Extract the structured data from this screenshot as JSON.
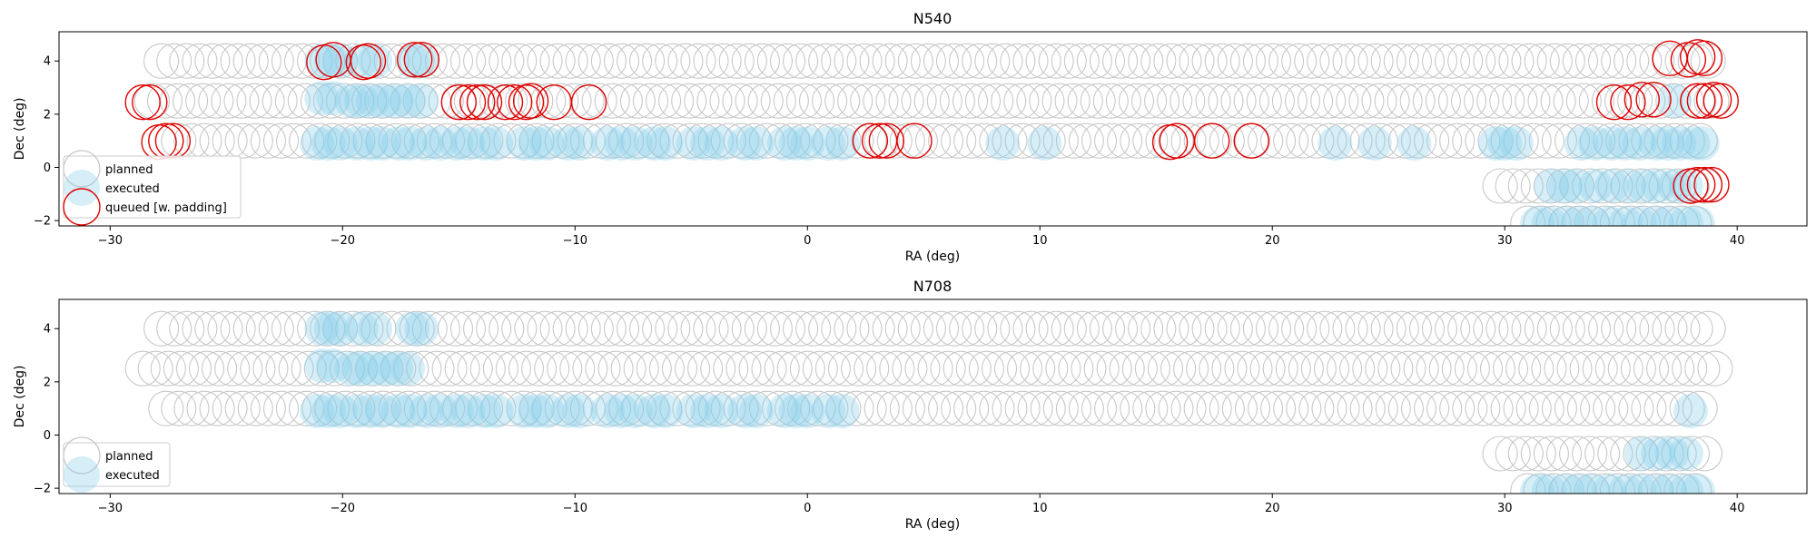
{
  "colors": {
    "planned_edge": "#c8c8c8",
    "executed_fill": "#87ceeb",
    "queued_edge": "#e00000",
    "legend_border": "#cccccc",
    "axis": "#000000"
  },
  "chart_data": [
    {
      "type": "scatter",
      "title": "N540",
      "xlabel": "RA (deg)",
      "ylabel": "Dec (deg)",
      "xlim": [
        -32.2,
        43.0
      ],
      "ylim": [
        -2.2,
        5.1
      ],
      "xticks": [
        -30,
        -20,
        -10,
        0,
        10,
        20,
        30,
        40
      ],
      "xtick_labels": [
        "−30",
        "−20",
        "−10",
        "0",
        "10",
        "20",
        "30",
        "40"
      ],
      "yticks": [
        -2,
        0,
        2,
        4
      ],
      "ytick_labels": [
        "−2",
        "0",
        "2",
        "4"
      ],
      "grid": false,
      "legend": {
        "location": "lower-left",
        "entries": [
          {
            "label": "planned",
            "series": "planned"
          },
          {
            "label": "executed",
            "series": "executed"
          },
          {
            "label": "queued [w. padding]",
            "series": "queued"
          }
        ]
      },
      "series": [
        {
          "name": "planned",
          "style": "planned",
          "rows": [
            {
              "dec": 4.0,
              "ra_start": -27.8,
              "ra_end": 38.8,
              "step": 0.55
            },
            {
              "dec": 2.5,
              "ra_start": -28.2,
              "ra_end": 39.2,
              "step": 0.55
            },
            {
              "dec": 1.0,
              "ra_start": -27.6,
              "ra_end": 38.6,
              "step": 0.55
            },
            {
              "dec": -0.7,
              "ra_start": 29.8,
              "ra_end": 38.6,
              "step": 0.55
            },
            {
              "dec": -2.1,
              "ra_start": 31.0,
              "ra_end": 38.4,
              "step": 0.55
            }
          ]
        },
        {
          "name": "executed",
          "style": "executed",
          "points": [
            [
              -20.9,
              4.0
            ],
            [
              -20.5,
              4.0
            ],
            [
              -20.1,
              4.0
            ],
            [
              -19.2,
              4.0
            ],
            [
              -18.6,
              4.0
            ],
            [
              -17.0,
              4.0
            ],
            [
              -16.6,
              4.0
            ],
            [
              -20.9,
              2.6
            ],
            [
              -20.4,
              2.6
            ],
            [
              -19.6,
              2.5
            ],
            [
              -19.2,
              2.5
            ],
            [
              -18.7,
              2.5
            ],
            [
              -18.2,
              2.5
            ],
            [
              -17.7,
              2.5
            ],
            [
              -17.2,
              2.5
            ],
            [
              -16.6,
              2.5
            ],
            [
              -21.1,
              0.9
            ],
            [
              -20.6,
              0.9
            ],
            [
              -20.1,
              0.9
            ],
            [
              -19.4,
              0.9
            ],
            [
              -18.8,
              0.9
            ],
            [
              -18.3,
              0.9
            ],
            [
              -17.6,
              0.9
            ],
            [
              -17.1,
              0.9
            ],
            [
              -16.4,
              0.9
            ],
            [
              -15.8,
              0.9
            ],
            [
              -15.1,
              0.9
            ],
            [
              -14.6,
              0.9
            ],
            [
              -13.9,
              0.9
            ],
            [
              -13.4,
              0.9
            ],
            [
              -12.2,
              0.9
            ],
            [
              -11.7,
              0.9
            ],
            [
              -11.2,
              0.9
            ],
            [
              -10.3,
              0.9
            ],
            [
              -9.8,
              0.9
            ],
            [
              -8.6,
              0.9
            ],
            [
              -8.0,
              0.9
            ],
            [
              -7.4,
              0.9
            ],
            [
              -6.6,
              0.9
            ],
            [
              -6.1,
              0.9
            ],
            [
              -4.9,
              0.9
            ],
            [
              -4.3,
              0.9
            ],
            [
              -3.7,
              0.9
            ],
            [
              -2.7,
              0.9
            ],
            [
              -2.2,
              0.9
            ],
            [
              -1.0,
              0.9
            ],
            [
              -0.5,
              0.9
            ],
            [
              0.0,
              0.9
            ],
            [
              0.9,
              0.9
            ],
            [
              1.5,
              0.9
            ],
            [
              8.4,
              0.9
            ],
            [
              10.2,
              0.9
            ],
            [
              22.7,
              0.9
            ],
            [
              24.4,
              0.9
            ],
            [
              26.1,
              0.9
            ],
            [
              29.6,
              0.9
            ],
            [
              30.0,
              0.9
            ],
            [
              30.5,
              0.9
            ],
            [
              33.3,
              0.9
            ],
            [
              33.9,
              0.9
            ],
            [
              34.6,
              0.9
            ],
            [
              35.2,
              0.9
            ],
            [
              35.8,
              0.9
            ],
            [
              36.5,
              0.9
            ],
            [
              37.0,
              0.9
            ],
            [
              37.5,
              0.9
            ],
            [
              38.1,
              0.9
            ],
            [
              38.5,
              0.9
            ],
            [
              37.3,
              2.5
            ],
            [
              32.0,
              -0.7
            ],
            [
              32.6,
              -0.7
            ],
            [
              33.1,
              -0.7
            ],
            [
              33.9,
              -0.7
            ],
            [
              34.6,
              -0.7
            ],
            [
              35.3,
              -0.7
            ],
            [
              36.0,
              -0.7
            ],
            [
              36.6,
              -0.7
            ],
            [
              37.3,
              -0.7
            ],
            [
              37.8,
              -0.7
            ],
            [
              31.4,
              -2.1
            ],
            [
              31.9,
              -2.1
            ],
            [
              32.6,
              -2.1
            ],
            [
              33.2,
              -2.1
            ],
            [
              33.8,
              -2.1
            ],
            [
              34.5,
              -2.1
            ],
            [
              35.2,
              -2.1
            ],
            [
              35.8,
              -2.1
            ],
            [
              36.5,
              -2.1
            ],
            [
              37.1,
              -2.1
            ],
            [
              37.8,
              -2.1
            ],
            [
              38.3,
              -2.1
            ]
          ]
        },
        {
          "name": "queued [w. padding]",
          "style": "queued",
          "points": [
            [
              -20.8,
              3.95
            ],
            [
              -20.4,
              4.05
            ],
            [
              -19.1,
              3.95
            ],
            [
              -18.9,
              4.0
            ],
            [
              -16.9,
              4.05
            ],
            [
              -16.6,
              4.05
            ],
            [
              -28.6,
              2.45
            ],
            [
              -28.3,
              2.45
            ],
            [
              -15.0,
              2.45
            ],
            [
              -14.6,
              2.45
            ],
            [
              -14.2,
              2.45
            ],
            [
              -13.9,
              2.45
            ],
            [
              -13.0,
              2.45
            ],
            [
              -12.6,
              2.45
            ],
            [
              -12.1,
              2.45
            ],
            [
              -11.9,
              2.5
            ],
            [
              -10.9,
              2.45
            ],
            [
              -9.4,
              2.45
            ],
            [
              -27.9,
              0.95
            ],
            [
              -27.6,
              1.0
            ],
            [
              -27.3,
              1.0
            ],
            [
              2.7,
              1.0
            ],
            [
              3.1,
              1.0
            ],
            [
              3.4,
              1.0
            ],
            [
              4.6,
              1.0
            ],
            [
              15.6,
              0.95
            ],
            [
              15.9,
              1.0
            ],
            [
              17.4,
              1.0
            ],
            [
              19.1,
              1.0
            ],
            [
              37.1,
              4.1
            ],
            [
              37.9,
              4.05
            ],
            [
              38.3,
              4.15
            ],
            [
              38.6,
              4.1
            ],
            [
              34.7,
              2.45
            ],
            [
              35.3,
              2.45
            ],
            [
              35.9,
              2.55
            ],
            [
              36.4,
              2.55
            ],
            [
              38.3,
              2.5
            ],
            [
              38.6,
              2.5
            ],
            [
              39.0,
              2.55
            ],
            [
              39.3,
              2.5
            ],
            [
              38.0,
              -0.7
            ],
            [
              38.3,
              -0.65
            ],
            [
              38.6,
              -0.65
            ],
            [
              38.9,
              -0.65
            ]
          ]
        }
      ]
    },
    {
      "type": "scatter",
      "title": "N708",
      "xlabel": "RA (deg)",
      "ylabel": "Dec (deg)",
      "xlim": [
        -32.2,
        43.0
      ],
      "ylim": [
        -2.2,
        5.1
      ],
      "xticks": [
        -30,
        -20,
        -10,
        0,
        10,
        20,
        30,
        40
      ],
      "xtick_labels": [
        "−30",
        "−20",
        "−10",
        "0",
        "10",
        "20",
        "30",
        "40"
      ],
      "yticks": [
        -2,
        0,
        2,
        4
      ],
      "ytick_labels": [
        "−2",
        "0",
        "2",
        "4"
      ],
      "grid": false,
      "legend": {
        "location": "lower-left",
        "entries": [
          {
            "label": "planned",
            "series": "planned"
          },
          {
            "label": "executed",
            "series": "executed"
          }
        ]
      },
      "series": [
        {
          "name": "planned",
          "style": "planned",
          "rows": [
            {
              "dec": 4.0,
              "ra_start": -27.8,
              "ra_end": 38.8,
              "step": 0.55
            },
            {
              "dec": 2.5,
              "ra_start": -28.6,
              "ra_end": 39.2,
              "step": 0.55
            },
            {
              "dec": 1.0,
              "ra_start": -27.6,
              "ra_end": 38.6,
              "step": 0.55
            },
            {
              "dec": -0.7,
              "ra_start": 29.8,
              "ra_end": 38.6,
              "step": 0.55
            },
            {
              "dec": -2.1,
              "ra_start": 31.0,
              "ra_end": 38.4,
              "step": 0.55
            }
          ]
        },
        {
          "name": "executed",
          "style": "executed",
          "points": [
            [
              -20.9,
              4.0
            ],
            [
              -20.5,
              4.0
            ],
            [
              -20.1,
              4.0
            ],
            [
              -19.2,
              4.0
            ],
            [
              -18.6,
              4.0
            ],
            [
              -17.0,
              4.0
            ],
            [
              -16.6,
              4.0
            ],
            [
              -20.9,
              2.6
            ],
            [
              -20.4,
              2.6
            ],
            [
              -19.6,
              2.5
            ],
            [
              -19.2,
              2.5
            ],
            [
              -18.7,
              2.5
            ],
            [
              -18.2,
              2.5
            ],
            [
              -17.7,
              2.5
            ],
            [
              -17.2,
              2.5
            ],
            [
              -21.1,
              0.9
            ],
            [
              -20.6,
              0.9
            ],
            [
              -20.1,
              0.9
            ],
            [
              -19.4,
              0.9
            ],
            [
              -18.8,
              0.9
            ],
            [
              -18.3,
              0.9
            ],
            [
              -17.6,
              0.9
            ],
            [
              -17.1,
              0.9
            ],
            [
              -16.4,
              0.9
            ],
            [
              -15.8,
              0.9
            ],
            [
              -15.1,
              0.9
            ],
            [
              -14.6,
              0.9
            ],
            [
              -13.9,
              0.9
            ],
            [
              -13.4,
              0.9
            ],
            [
              -12.2,
              0.9
            ],
            [
              -11.7,
              0.9
            ],
            [
              -11.2,
              0.9
            ],
            [
              -10.3,
              0.9
            ],
            [
              -9.8,
              0.9
            ],
            [
              -8.6,
              0.9
            ],
            [
              -8.0,
              0.9
            ],
            [
              -7.4,
              0.9
            ],
            [
              -6.6,
              0.9
            ],
            [
              -6.1,
              0.9
            ],
            [
              -4.9,
              0.9
            ],
            [
              -4.3,
              0.9
            ],
            [
              -3.7,
              0.9
            ],
            [
              -2.7,
              0.9
            ],
            [
              -2.2,
              0.9
            ],
            [
              -1.0,
              0.9
            ],
            [
              -0.5,
              0.9
            ],
            [
              0.0,
              0.9
            ],
            [
              0.9,
              0.9
            ],
            [
              1.5,
              0.9
            ],
            [
              38.0,
              0.9
            ],
            [
              35.9,
              -0.7
            ],
            [
              36.6,
              -0.7
            ],
            [
              37.2,
              -0.7
            ],
            [
              37.8,
              -0.7
            ],
            [
              31.4,
              -2.1
            ],
            [
              31.9,
              -2.1
            ],
            [
              32.6,
              -2.1
            ],
            [
              33.2,
              -2.1
            ],
            [
              33.8,
              -2.1
            ],
            [
              34.5,
              -2.1
            ],
            [
              35.2,
              -2.1
            ],
            [
              35.8,
              -2.1
            ],
            [
              36.5,
              -2.1
            ],
            [
              37.1,
              -2.1
            ],
            [
              37.8,
              -2.1
            ],
            [
              38.3,
              -2.1
            ]
          ]
        }
      ]
    }
  ]
}
